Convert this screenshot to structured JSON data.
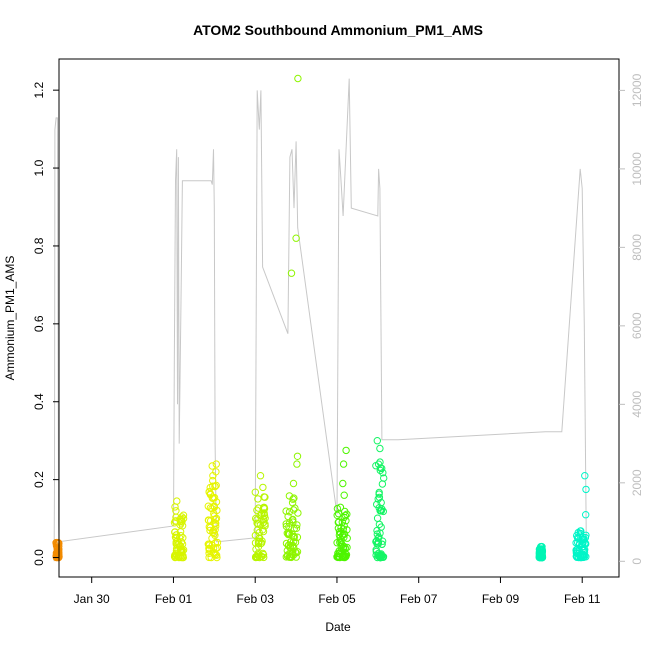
{
  "chart_data": {
    "type": "scatter",
    "title": "ATOM2 Southbound Ammonium_PM1_AMS",
    "xlabel": "Date",
    "ylabel": "Ammonium_PM1_AMS",
    "x_unit": "days since Jan 28",
    "xlim": [
      1.2,
      14.9
    ],
    "ylim": [
      -0.05,
      1.28
    ],
    "y_ticks": [
      "0.0",
      "0.2",
      "0.4",
      "0.6",
      "0.8",
      "1.0",
      "1.2"
    ],
    "x_ticks": [
      {
        "label": "Jan 30",
        "value": 2
      },
      {
        "label": "Feb 01",
        "value": 4
      },
      {
        "label": "Feb 03",
        "value": 6
      },
      {
        "label": "Feb 05",
        "value": 8
      },
      {
        "label": "Feb 07",
        "value": 10
      },
      {
        "label": "Feb 09",
        "value": 12
      },
      {
        "label": "Feb 11",
        "value": 14
      }
    ],
    "secondary_axis": {
      "ylim": [
        -400,
        12800
      ],
      "ticks": [
        "0",
        "2000",
        "4000",
        "6000",
        "8000",
        "10000",
        "12000"
      ],
      "color": "#bebebe"
    },
    "flights": [
      {
        "color": "#f28b00",
        "x_start": 1.13,
        "x_end": 1.2,
        "y_min": 0.0,
        "y_max": 0.045,
        "extra": []
      },
      {
        "color": "#d8f500",
        "x_start": 4.02,
        "x_end": 4.25,
        "y_min": 0.0,
        "y_max": 0.11,
        "extra": [
          0.12,
          0.13,
          0.145
        ]
      },
      {
        "color": "#e6f500",
        "x_start": 4.85,
        "x_end": 5.08,
        "y_min": 0.0,
        "y_max": 0.2,
        "extra": [
          0.21,
          0.22,
          0.235,
          0.24
        ]
      },
      {
        "color": "#b8f500",
        "x_start": 6.0,
        "x_end": 6.25,
        "y_min": 0.0,
        "y_max": 0.17,
        "extra": [
          0.18,
          0.21
        ]
      },
      {
        "color": "#8ef500",
        "x_start": 6.75,
        "x_end": 7.05,
        "y_min": 0.0,
        "y_max": 0.16,
        "extra": [
          0.19,
          0.24,
          0.26,
          0.73,
          0.82,
          1.23
        ]
      },
      {
        "color": "#4ef500",
        "x_start": 8.0,
        "x_end": 8.25,
        "y_min": 0.0,
        "y_max": 0.13,
        "extra": [
          0.16,
          0.19,
          0.24,
          0.275
        ]
      },
      {
        "color": "#14f564",
        "x_start": 8.95,
        "x_end": 9.15,
        "y_min": 0.0,
        "y_max": 0.26,
        "extra": [
          0.28,
          0.3,
          0.12
        ]
      },
      {
        "color": "#00f5b4",
        "x_start": 12.95,
        "x_end": 13.03,
        "y_min": 0.0,
        "y_max": 0.03,
        "extra": []
      },
      {
        "color": "#00f5c8",
        "x_start": 13.85,
        "x_end": 14.1,
        "y_min": 0.0,
        "y_max": 0.07,
        "extra": [
          0.11,
          0.175,
          0.21
        ]
      }
    ],
    "altitude_trace": [
      [
        1.08,
        0
      ],
      [
        1.09,
        2000
      ],
      [
        1.1,
        11000
      ],
      [
        1.13,
        11300
      ],
      [
        1.16,
        11300
      ],
      [
        1.19,
        1000
      ],
      [
        1.2,
        500
      ],
      [
        4.0,
        900
      ],
      [
        4.02,
        5000
      ],
      [
        4.05,
        9700
      ],
      [
        4.08,
        10500
      ],
      [
        4.1,
        4000
      ],
      [
        4.12,
        10300
      ],
      [
        4.14,
        3000
      ],
      [
        4.18,
        6200
      ],
      [
        4.22,
        9700
      ],
      [
        4.6,
        9700
      ],
      [
        4.92,
        9700
      ],
      [
        4.95,
        9600
      ],
      [
        4.98,
        10500
      ],
      [
        5.0,
        9000
      ],
      [
        5.02,
        3000
      ],
      [
        5.05,
        500
      ],
      [
        5.08,
        500
      ],
      [
        6.0,
        600
      ],
      [
        6.05,
        12000
      ],
      [
        6.1,
        11000
      ],
      [
        6.14,
        12000
      ],
      [
        6.18,
        7500
      ],
      [
        6.8,
        5800
      ],
      [
        6.85,
        10300
      ],
      [
        6.9,
        10500
      ],
      [
        6.95,
        9000
      ],
      [
        7.0,
        10700
      ],
      [
        7.04,
        8500
      ],
      [
        7.5,
        5000
      ],
      [
        8.0,
        1200
      ],
      [
        8.05,
        10500
      ],
      [
        8.1,
        9700
      ],
      [
        8.15,
        8800
      ],
      [
        8.3,
        12300
      ],
      [
        8.35,
        9000
      ],
      [
        9.0,
        8800
      ],
      [
        9.02,
        10000
      ],
      [
        9.05,
        9500
      ],
      [
        9.1,
        3100
      ],
      [
        9.5,
        3100
      ],
      [
        13.1,
        3300
      ],
      [
        13.5,
        3300
      ],
      [
        13.95,
        10000
      ],
      [
        14.0,
        9500
      ],
      [
        14.05,
        6000
      ],
      [
        14.1,
        500
      ]
    ]
  }
}
